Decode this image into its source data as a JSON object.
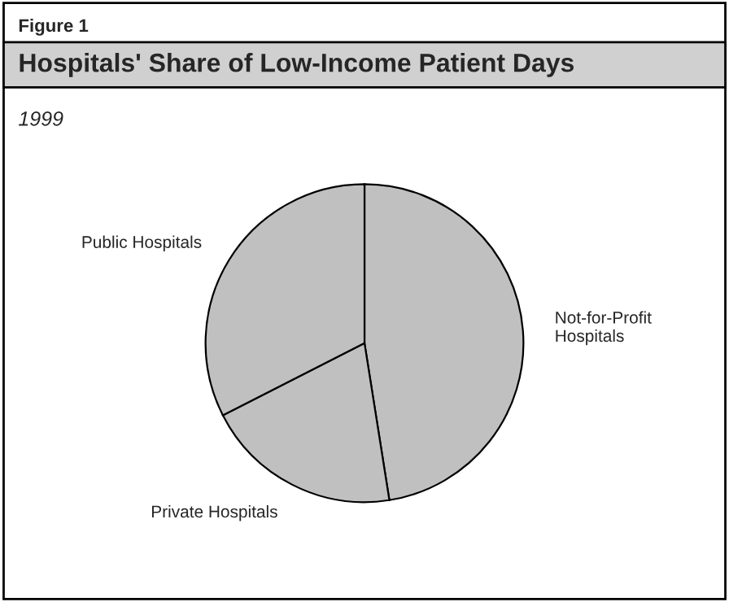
{
  "chart_data": {
    "type": "pie",
    "title": "Hospitals' Share of Low-Income Patient Days",
    "subtitle": "1999",
    "annotations": [
      "Figure 1"
    ],
    "categories": [
      "Not-for-Profit\nHospitals",
      "Private Hospitals",
      "Public Hospitals"
    ],
    "values": [
      47.5,
      20,
      32.5
    ],
    "colors": [
      "#c0c0c0",
      "#c0c0c0",
      "#c0c0c0"
    ]
  }
}
